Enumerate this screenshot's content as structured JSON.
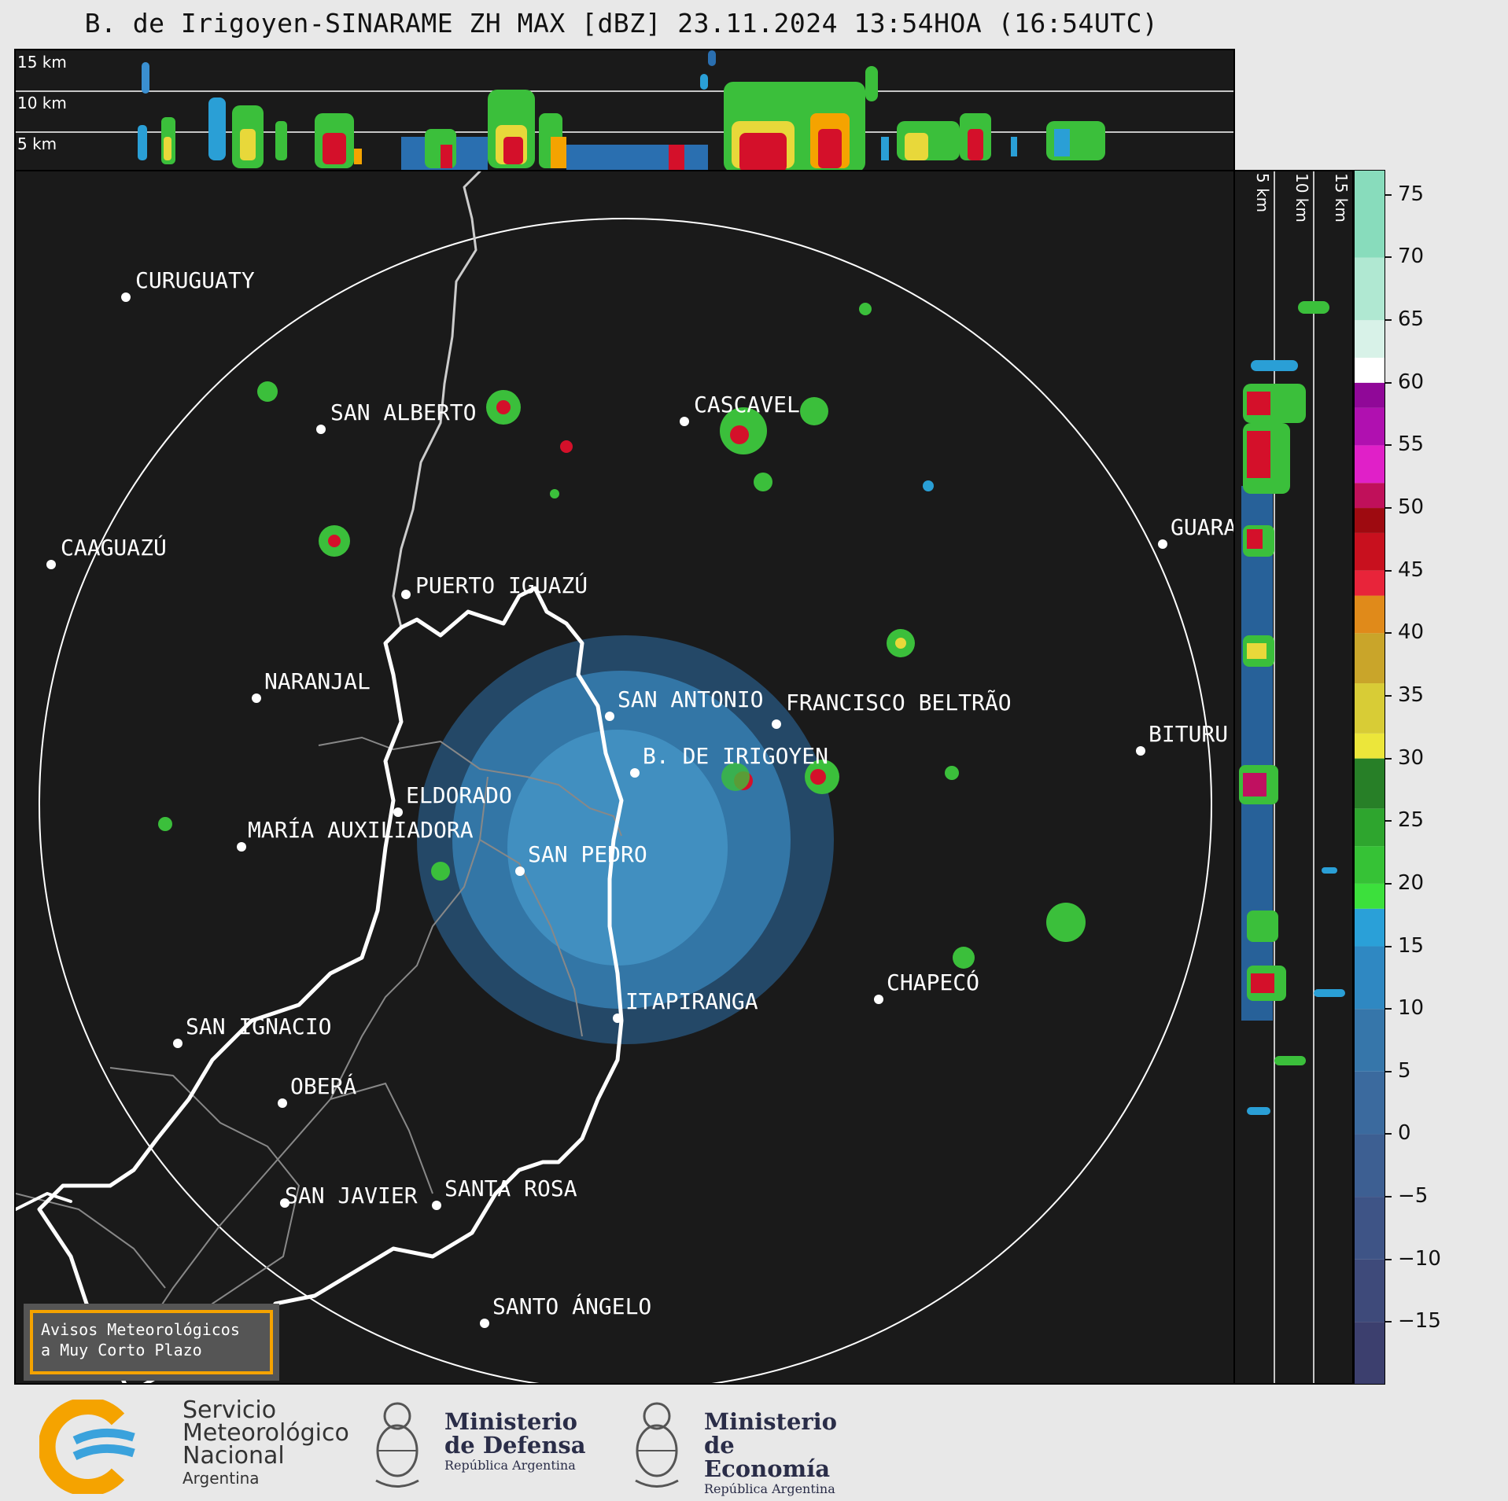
{
  "title": "B. de Irigoyen-SINARAME ZH MAX [dBZ] 23.11.2024 13:54HOA (16:54UTC)",
  "top_height_labels": [
    "15 km",
    "10 km",
    "5 km"
  ],
  "side_height_labels": [
    "5 km",
    "10 km",
    "15 km"
  ],
  "colorbar": {
    "unit": "dBZ",
    "min": -20,
    "max": 77,
    "ticks": [
      "75",
      "70",
      "65",
      "60",
      "55",
      "50",
      "45",
      "40",
      "35",
      "30",
      "25",
      "20",
      "15",
      "10",
      "5",
      "0",
      "−5",
      "−10",
      "−15"
    ],
    "tick_values": [
      75,
      70,
      65,
      60,
      55,
      50,
      45,
      40,
      35,
      30,
      25,
      20,
      15,
      10,
      5,
      0,
      -5,
      -10,
      -15
    ]
  },
  "cities": [
    {
      "name": "CURUGUATY"
    },
    {
      "name": "SAN ALBERTO"
    },
    {
      "name": "CASCAVEL"
    },
    {
      "name": "CAAGUAZÚ"
    },
    {
      "name": "GUARA"
    },
    {
      "name": "PUERTO IGUAZÚ"
    },
    {
      "name": "NARANJAL"
    },
    {
      "name": "SAN ANTONIO"
    },
    {
      "name": "FRANCISCO BELTRÃO"
    },
    {
      "name": "BITURU"
    },
    {
      "name": "B. DE IRIGOYEN"
    },
    {
      "name": "ELDORADO"
    },
    {
      "name": "MARÍA AUXILIADORA"
    },
    {
      "name": "SAN PEDRO"
    },
    {
      "name": "CHAPECÓ"
    },
    {
      "name": "ITAPIRANGA"
    },
    {
      "name": "SAN IGNACIO"
    },
    {
      "name": "OBERÁ"
    },
    {
      "name": "SAN JAVIER"
    },
    {
      "name": "SANTA ROSA"
    },
    {
      "name": "SANTO ÁNGELO"
    }
  ],
  "warning": {
    "line1": "Avisos Meteorológicos",
    "line2": "a Muy Corto Plazo"
  },
  "footer": {
    "smn": {
      "line1": "Servicio",
      "line2": "Meteorológico",
      "line3": "Nacional",
      "line4": "Argentina"
    },
    "defensa": {
      "line1": "Ministerio",
      "line2": "de Defensa",
      "line3": "República Argentina"
    },
    "economia": {
      "line1": "Ministerio",
      "line2": "de Economía",
      "line3": "República Argentina"
    }
  },
  "colors": {
    "background": "#1a1a1a",
    "border_line": "#ffffff",
    "accent": "#f5a300"
  }
}
